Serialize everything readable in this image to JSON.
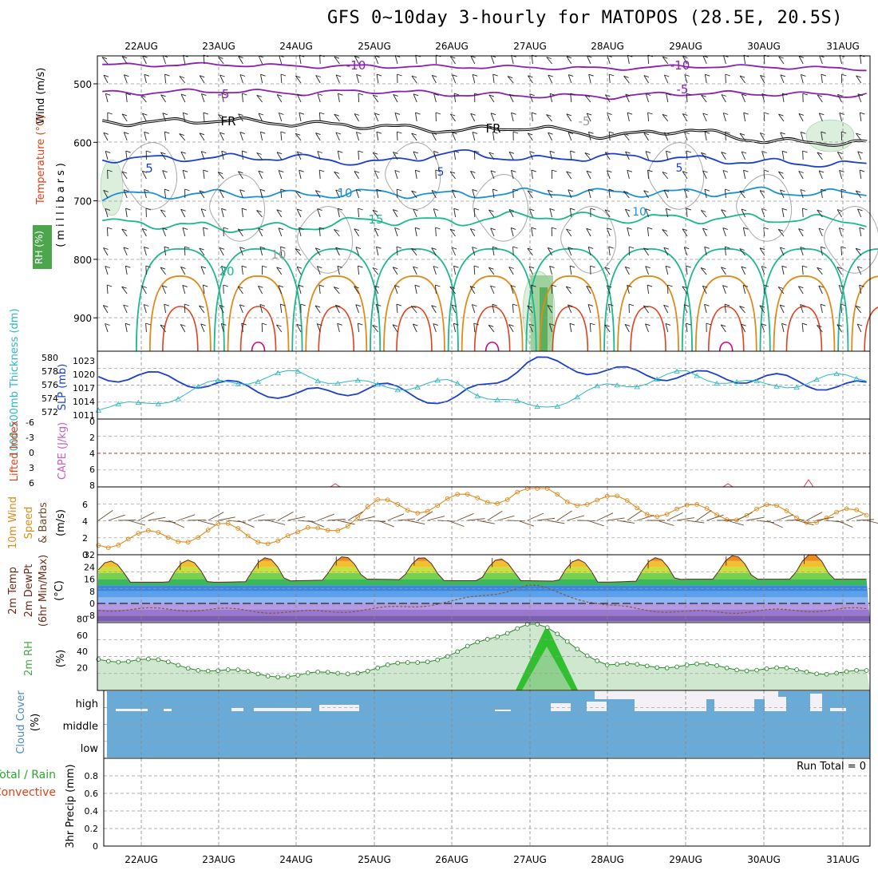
{
  "title": "GFS 0~10day 3-hourly for MATOPOS (28.5E, 20.5S)",
  "days": [
    "22AUG",
    "23AUG",
    "24AUG",
    "25AUG",
    "26AUG",
    "27AUG",
    "28AUG",
    "29AUG",
    "30AUG",
    "31AUG"
  ],
  "colors": {
    "purple": "#8a1fb0",
    "black": "#000000",
    "blue": "#1a3fd0",
    "lightblue": "#1a90d8",
    "teal": "#1ab88f",
    "orange": "#e08a1a",
    "red": "#e0401a",
    "magenta": "#d0007a",
    "cyan": "#2ab8c0",
    "cloud": "#6aaad6",
    "rh_green": "#4ca64c"
  },
  "upper": {
    "ylabels": [
      "Wind (m/s)",
      "Temperature (°C)",
      "(millibars)",
      "RH (%)"
    ],
    "pressure_ticks": [
      500,
      600,
      700,
      800,
      900
    ],
    "contour_labels": [
      "-10",
      "-5",
      "FR",
      "5",
      "10",
      "15",
      "20",
      "10",
      "-10",
      "-5",
      "FR",
      "-5",
      "5",
      "10",
      "5"
    ]
  },
  "slp_panel": {
    "ylabel_left": "1000-500mb Thickness (dm)",
    "ylabel_right": "SLP (mb)",
    "thick_ticks": [
      "580",
      "578",
      "576",
      "574",
      "572"
    ],
    "slp_ticks": [
      "1023",
      "1020",
      "1017",
      "1014",
      "1011"
    ]
  },
  "li_panel": {
    "ylabel_left": "Lifted Index",
    "ylabel_right": "CAPE (J/kg)",
    "li_ticks": [
      "-6",
      "-3",
      "0",
      "3",
      "6"
    ],
    "cape_ticks": [
      "8",
      "6",
      "4",
      "2",
      "0"
    ]
  },
  "wind_panel": {
    "ylabels": [
      "10m Wind",
      "Speed",
      "& Barbs",
      "(m/s)"
    ],
    "ticks": [
      "6",
      "4",
      "2",
      "0"
    ]
  },
  "temp_panel": {
    "ylabels": [
      "2m Temp",
      "2m DewPt",
      "(6hr Min/Max)",
      "(°C)"
    ],
    "ticks": [
      "32",
      "24",
      "16",
      "8",
      "0",
      "-8"
    ]
  },
  "rh_panel": {
    "ylabels": [
      "2m RH",
      "(%)"
    ],
    "ticks": [
      "80",
      "60",
      "40",
      "20"
    ]
  },
  "cloud_panel": {
    "ylabels": [
      "Cloud Cover",
      "(%)"
    ],
    "levels": [
      "high",
      "middle",
      "low"
    ]
  },
  "precip_panel": {
    "ylabels": [
      "Total / Rain",
      "Convective",
      "3hr Precip (mm)"
    ],
    "ticks": [
      "0.8",
      "0.6",
      "0.4",
      "0.2",
      "0"
    ],
    "run_total": "Run Total = 0"
  },
  "chart_data": [
    {
      "type": "line",
      "panel": "upper-air time-height section",
      "x": [
        "22AUG",
        "23AUG",
        "24AUG",
        "25AUG",
        "26AUG",
        "27AUG",
        "28AUG",
        "29AUG",
        "30AUG",
        "31AUG"
      ],
      "ylabel": "millibars",
      "ylim": [
        950,
        450
      ],
      "series": [
        {
          "name": "-10",
          "values": [
            468,
            467,
            470,
            470,
            471,
            472,
            474,
            470,
            471,
            474
          ]
        },
        {
          "name": "-5",
          "values": [
            515,
            512,
            516,
            512,
            518,
            520,
            522,
            516,
            517,
            519
          ]
        },
        {
          "name": "FR",
          "values": [
            566,
            562,
            568,
            572,
            580,
            574,
            590,
            578,
            598,
            601
          ]
        },
        {
          "name": "5",
          "values": [
            628,
            626,
            626,
            636,
            617,
            630,
            624,
            628,
            634,
            638
          ]
        },
        {
          "name": "10",
          "values": [
            690,
            688,
            690,
            686,
            690,
            686,
            686,
            686,
            684,
            688
          ]
        },
        {
          "name": "15",
          "values": [
            738,
            746,
            746,
            732,
            736,
            724,
            730,
            730,
            730,
            734
          ]
        }
      ]
    },
    {
      "type": "line",
      "panel": "SLP and 1000-500mb thickness",
      "x": [
        "22AUG",
        "23AUG",
        "24AUG",
        "25AUG",
        "26AUG",
        "27AUG",
        "28AUG",
        "29AUG",
        "30AUG",
        "31AUG"
      ],
      "series": [
        {
          "name": "SLP (mb)",
          "values": [
            1019.5,
            1017.5,
            1015,
            1017,
            1013.5,
            1023,
            1020.5,
            1019.5,
            1019,
            1017
          ]
        },
        {
          "name": "1000-500mb Thickness (dm)",
          "values": [
            573,
            576.6,
            578,
            576,
            576.5,
            572.5,
            576,
            578,
            576,
            577.5
          ]
        }
      ]
    },
    {
      "type": "line",
      "panel": "10m wind speed",
      "x": [
        "22AUG",
        "23AUG",
        "24AUG",
        "25AUG",
        "26AUG",
        "27AUG",
        "28AUG",
        "29AUG",
        "30AUG",
        "31AUG"
      ],
      "ylim": [
        0,
        7
      ],
      "series": [
        {
          "name": "Speed",
          "values": [
            1.5,
            2.5,
            1.5,
            5.0,
            5.5,
            7.0,
            5.5,
            4.5,
            4.5,
            4.0
          ]
        }
      ]
    },
    {
      "type": "area",
      "panel": "2m temperature",
      "x": [
        "22AUG",
        "23AUG",
        "24AUG",
        "25AUG",
        "26AUG",
        "27AUG",
        "28AUG",
        "29AUG",
        "30AUG",
        "31AUG"
      ],
      "ylim": [
        -12,
        36
      ],
      "series": [
        {
          "name": "2m Temp (max)",
          "values": [
            28,
            29,
            31,
            31,
            30,
            29,
            29,
            31,
            32,
            33
          ]
        },
        {
          "name": "2m Temp (min)",
          "values": [
            14,
            14,
            15,
            16,
            15,
            15,
            14,
            16,
            16,
            16
          ]
        },
        {
          "name": "2m DewPt",
          "values": [
            -4,
            -4,
            -6,
            -4,
            1,
            12,
            -2,
            -6,
            -5,
            -4
          ]
        }
      ]
    },
    {
      "type": "area",
      "panel": "2m RH",
      "x": [
        "22AUG",
        "23AUG",
        "24AUG",
        "25AUG",
        "26AUG",
        "27AUG",
        "28AUG",
        "29AUG",
        "30AUG",
        "31AUG"
      ],
      "ylim": [
        0,
        85
      ],
      "series": [
        {
          "name": "2m RH",
          "values": [
            30,
            16,
            10,
            18,
            36,
            78,
            22,
            23,
            18,
            14
          ]
        }
      ]
    },
    {
      "type": "bar",
      "panel": "3hr precip",
      "x": [
        "22AUG",
        "23AUG",
        "24AUG",
        "25AUG",
        "26AUG",
        "27AUG",
        "28AUG",
        "29AUG",
        "30AUG",
        "31AUG"
      ],
      "ylim": [
        0,
        1
      ],
      "series": [
        {
          "name": "3hr Precip (mm)",
          "values": [
            0,
            0,
            0,
            0,
            0,
            0,
            0,
            0,
            0,
            0
          ]
        }
      ]
    }
  ]
}
